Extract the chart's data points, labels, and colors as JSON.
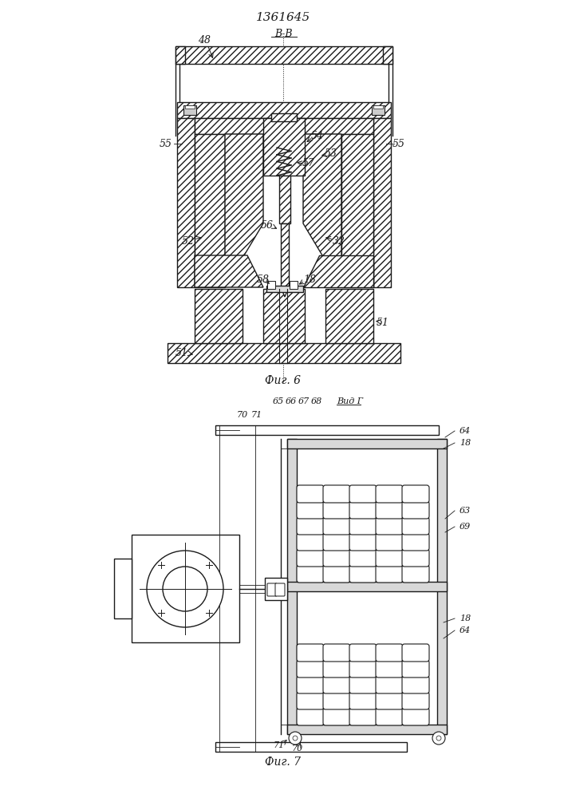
{
  "title": "1361645",
  "fig6_caption": "Фиг. 6",
  "fig7_caption": "Фиг. 7",
  "section_label": "В-В",
  "view_label": "Вид Г",
  "lc": "#1a1a1a",
  "hc": "#888888"
}
